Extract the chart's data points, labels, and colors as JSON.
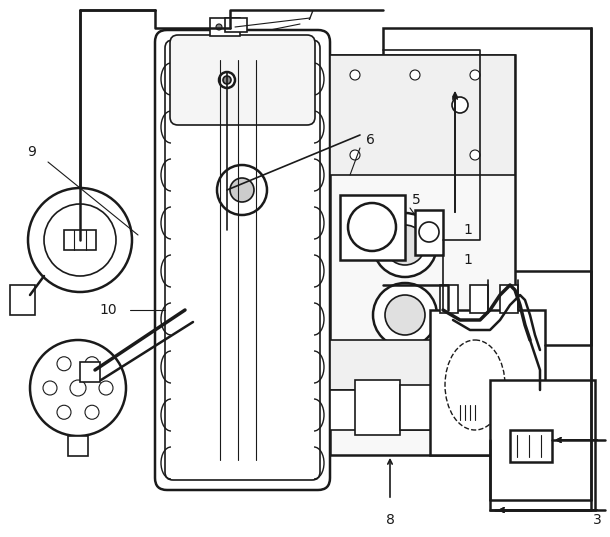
{
  "bg_color": "#ffffff",
  "lc": "#1a1a1a",
  "figsize": [
    6.1,
    5.37
  ],
  "dpi": 100
}
